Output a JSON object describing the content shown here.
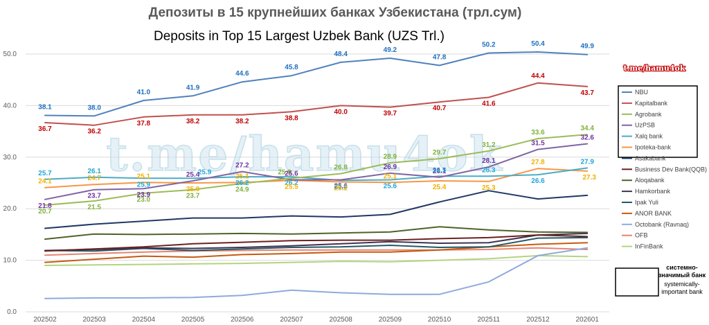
{
  "chart_data": {
    "type": "line",
    "title": "Депозиты в 15 крупнейших банках Узбекистана (трл.сум)",
    "subtitle": "Deposits in Top 15 Largest Uzbek Bank (UZS Trl.)",
    "categories": [
      "202502",
      "202503",
      "202504",
      "202505",
      "202506",
      "202507",
      "202508",
      "202509",
      "202510",
      "202511",
      "202512",
      "202601"
    ],
    "ylim": [
      0,
      50
    ],
    "yticks": [
      "0.0",
      "10.0",
      "20.0",
      "30.0",
      "40.0",
      "50.0"
    ],
    "grid": true,
    "legend_position": "right",
    "watermark_small": "t.me/hamu4ok",
    "watermark_large": "t.me/hamu4ok",
    "note": {
      "line1": "системно-",
      "line2": "значимый банк",
      "line3": "systemically-",
      "line4": "important bank"
    },
    "series": [
      {
        "name": "NBU",
        "color": "#4f81bd",
        "labeled": true,
        "label_color": "#1f6fbf",
        "values": [
          38.1,
          38.0,
          41.0,
          41.9,
          44.6,
          45.8,
          48.4,
          49.2,
          47.8,
          50.2,
          50.4,
          49.9
        ]
      },
      {
        "name": "Kapitalbank",
        "color": "#c0504d",
        "labeled": true,
        "label_color": "#c00000",
        "values": [
          36.7,
          36.2,
          37.8,
          38.2,
          38.2,
          38.8,
          40.0,
          39.7,
          40.7,
          41.6,
          44.4,
          43.7
        ]
      },
      {
        "name": "Agrobank",
        "color": "#9bbb59",
        "labeled": true,
        "label_color": "#7fb23a",
        "values": [
          20.7,
          21.5,
          23.0,
          23.7,
          24.9,
          25.9,
          26.8,
          28.9,
          29.7,
          31.2,
          33.6,
          34.4
        ]
      },
      {
        "name": "UzPSB",
        "color": "#8064a2",
        "labeled": true,
        "label_color": "#7030a0",
        "values": [
          21.8,
          23.7,
          23.9,
          25.4,
          27.2,
          25.6,
          25.6,
          26.9,
          26.1,
          28.1,
          31.5,
          32.6
        ]
      },
      {
        "name": "Xalq bank",
        "color": "#4bacc6",
        "labeled": true,
        "label_color": "#1fa6d8",
        "values": [
          25.7,
          26.1,
          25.9,
          25.9,
          26.2,
          26.2,
          25.5,
          25.6,
          26.3,
          26.3,
          26.6,
          27.9
        ]
      },
      {
        "name": "Ipoteka-bank",
        "color": "#f79646",
        "labeled": true,
        "label_color": "#f0b000",
        "values": [
          24.1,
          24.7,
          25.1,
          25.0,
          25.1,
          25.5,
          25.2,
          25.1,
          25.4,
          25.3,
          27.8,
          27.3
        ]
      },
      {
        "name": "Asakabank",
        "color": "#1f3864",
        "labeled": false,
        "values": [
          16.2,
          17.0,
          17.6,
          18.2,
          18.2,
          18.6,
          18.4,
          18.9,
          21.3,
          23.5,
          21.9,
          22.6
        ]
      },
      {
        "name": "Business Dev Bank(QQB)",
        "color": "#6b2120",
        "labeled": false,
        "values": [
          11.8,
          12.2,
          12.6,
          13.2,
          13.5,
          13.8,
          13.9,
          13.9,
          14.2,
          14.4,
          14.9,
          14.6
        ]
      },
      {
        "name": "Aloqabank",
        "color": "#4f6228",
        "labeled": false,
        "values": [
          14.1,
          15.1,
          15.0,
          15.1,
          15.2,
          15.1,
          15.3,
          15.5,
          16.5,
          15.9,
          15.5,
          15.4
        ]
      },
      {
        "name": "Hamkorbank",
        "color": "#403151",
        "labeled": false,
        "values": [
          11.9,
          12.1,
          12.4,
          12.3,
          12.5,
          12.8,
          13.2,
          13.6,
          13.3,
          13.4,
          14.9,
          15.2
        ]
      },
      {
        "name": "Ipak Yuli",
        "color": "#215968",
        "labeled": false,
        "values": [
          11.9,
          11.8,
          12.3,
          11.9,
          12.2,
          12.5,
          12.6,
          12.9,
          12.5,
          12.6,
          14.3,
          14.4
        ]
      },
      {
        "name": "ANOR BANK",
        "color": "#c55a11",
        "labeled": false,
        "values": [
          9.6,
          10.2,
          10.8,
          10.6,
          11.1,
          11.3,
          11.6,
          11.6,
          12.0,
          12.6,
          13.1,
          13.4
        ]
      },
      {
        "name": "Octobank (Ravnaq)",
        "color": "#8eaadb",
        "labeled": false,
        "values": [
          2.6,
          2.7,
          2.7,
          2.8,
          3.2,
          4.2,
          3.7,
          3.4,
          3.4,
          5.8,
          10.9,
          12.4
        ]
      },
      {
        "name": "OFB",
        "color": "#e6846f",
        "labeled": false,
        "values": [
          11.0,
          11.3,
          11.6,
          11.8,
          11.9,
          12.0,
          12.0,
          12.0,
          12.0,
          12.1,
          12.4,
          12.1
        ]
      },
      {
        "name": "InFinBank",
        "color": "#b3d47e",
        "labeled": false,
        "values": [
          9.0,
          9.1,
          9.2,
          9.3,
          9.4,
          9.6,
          9.8,
          9.7,
          10.0,
          10.3,
          10.9,
          10.7
        ]
      }
    ]
  }
}
